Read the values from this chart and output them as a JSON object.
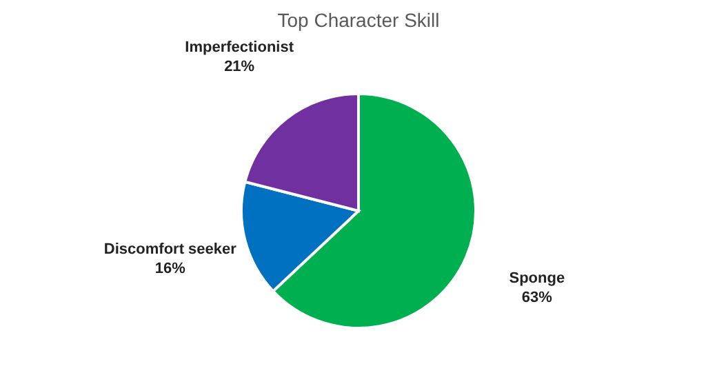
{
  "chart_data": {
    "type": "pie",
    "title": "Top Character Skill",
    "categories": [
      "Sponge",
      "Discomfort seeker",
      "Imperfectionist"
    ],
    "values": [
      63,
      16,
      21
    ],
    "value_labels": [
      "63%",
      "16%",
      "21%"
    ],
    "colors": [
      "#00b050",
      "#0070c0",
      "#7030a0"
    ],
    "legend": false
  }
}
